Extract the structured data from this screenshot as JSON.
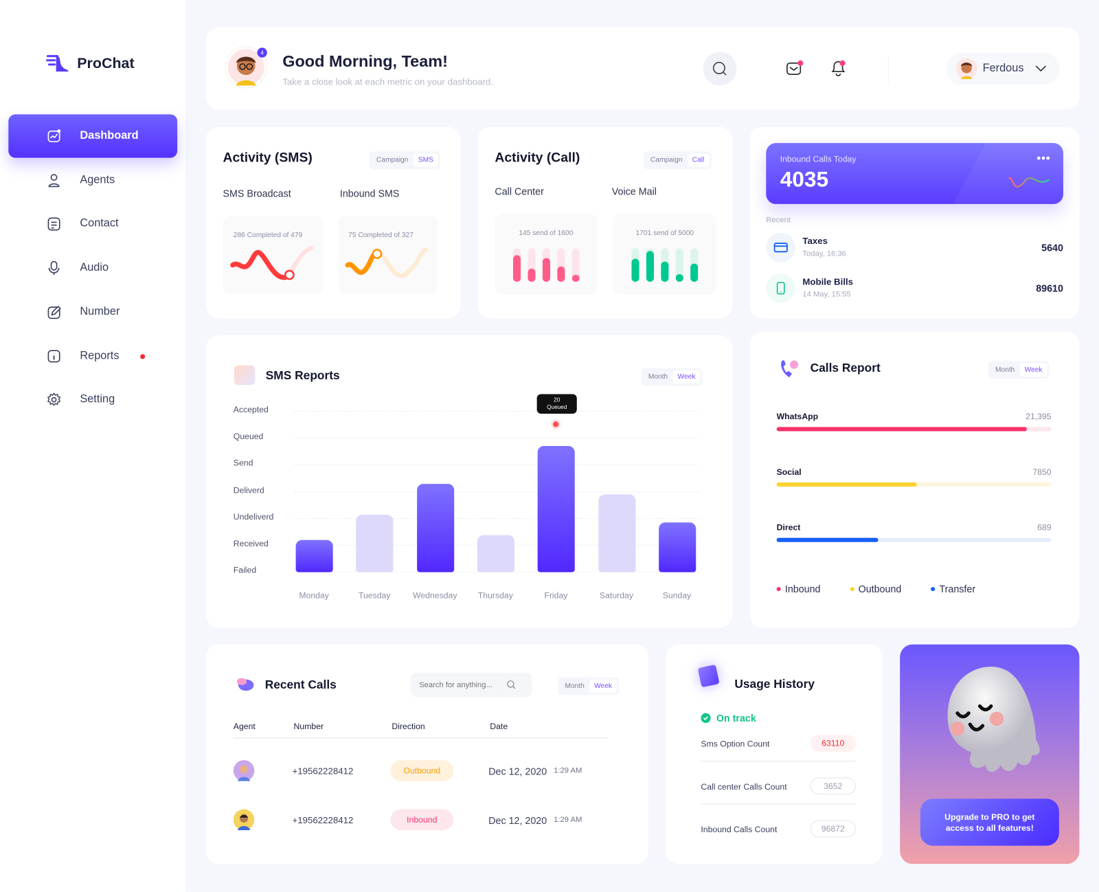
{
  "brand": {
    "name": "ProChat",
    "accent": "#5a3cff"
  },
  "sidebar": {
    "items": [
      {
        "label": "Dashboard",
        "icon": "chart-icon",
        "active": true
      },
      {
        "label": "Agents",
        "icon": "user-icon"
      },
      {
        "label": "Contact",
        "icon": "contact-icon"
      },
      {
        "label": "Audio",
        "icon": "microphone-icon"
      },
      {
        "label": "Number",
        "icon": "edit-icon"
      },
      {
        "label": "Reports",
        "icon": "info-icon",
        "badge_dot": true
      },
      {
        "label": "Setting",
        "icon": "gear-icon"
      }
    ]
  },
  "header": {
    "greeting": "Good Morning, Team!",
    "subtitle": "Take a close look at each metric on your dashboard.",
    "avatar_badge": "4",
    "user": "Ferdous"
  },
  "activity_sms": {
    "title": "Activity (SMS)",
    "tabs": [
      "Campaign",
      "SMS"
    ],
    "active_tab": "SMS",
    "items": [
      {
        "label": "SMS Broadcast",
        "caption": "286 Completed of 479",
        "color": "#ff3b3b"
      },
      {
        "label": "Inbound SMS",
        "caption": "75 Completed of  327",
        "color": "#ff9500"
      }
    ]
  },
  "activity_call": {
    "title": "Activity (Call)",
    "tabs": [
      "Campaign",
      "Call"
    ],
    "active_tab": "Call",
    "items": [
      {
        "label": "Call Center",
        "caption": "145 send of 1600",
        "color": "#ff5c8a",
        "track": "#fde4ec",
        "levels": [
          0.8,
          0.4,
          0.7,
          0.45,
          0.2
        ]
      },
      {
        "label": "Voice Mail",
        "caption": "1701 send of 5000",
        "color": "#00c98f",
        "track": "#dcf4ec",
        "levels": [
          0.68,
          0.92,
          0.6,
          0.22,
          0.55
        ]
      }
    ]
  },
  "inbound": {
    "label": "Inbound Calls Today",
    "value": "4035",
    "recent_label": "Recent",
    "recent": [
      {
        "title": "Taxes",
        "time": "Today, 16:36",
        "amount": "5640",
        "icon": "credit-card-icon"
      },
      {
        "title": "Mobile Bills",
        "time": "14 May, 15:55",
        "amount": "89610",
        "icon": "phone-icon"
      }
    ]
  },
  "sms_reports": {
    "title": "SMS Reports",
    "tabs": [
      "Month",
      "Week"
    ],
    "active_tab": "Week",
    "tooltip": {
      "value": "20",
      "label": "Queued"
    }
  },
  "chart_data": {
    "type": "bar",
    "title": "SMS Reports",
    "y_categories": [
      "Accepted",
      "Queued",
      "Send",
      "Deliverd",
      "Undeliverd",
      "Received",
      "Failed"
    ],
    "categories": [
      "Monday",
      "Tuesday",
      "Wednesday",
      "Thursday",
      "Friday",
      "Saturday",
      "Sunday"
    ],
    "values": [
      1.2,
      2.2,
      3.4,
      1.4,
      4.9,
      3.0,
      1.9
    ],
    "highlight": [
      true,
      false,
      true,
      false,
      true,
      false,
      true
    ],
    "colors": {
      "solid": "#5a3cff",
      "light": "#dcd9fb"
    }
  },
  "calls_report": {
    "title": "Calls Report",
    "tabs": [
      "Month",
      "Week"
    ],
    "active_tab": "Week",
    "rows": [
      {
        "label": "WhatsApp",
        "value": "21,395",
        "fill": 0.91,
        "color": "#f7336c",
        "track": "#fde6ec"
      },
      {
        "label": "Social",
        "value": "7850",
        "fill": 0.51,
        "color": "#fcd22f",
        "track": "#fdf6dd"
      },
      {
        "label": "Direct",
        "value": "689",
        "fill": 0.37,
        "color": "#1660f5",
        "track": "#e5edfc"
      }
    ],
    "legend": [
      {
        "label": "Inbound",
        "color": "#f7336c"
      },
      {
        "label": "Outbound",
        "color": "#fcd22f"
      },
      {
        "label": "Transfer",
        "color": "#1660f5"
      }
    ]
  },
  "recent_calls": {
    "title": "Recent Calls",
    "search_placeholder": "Search for anything...",
    "tabs": [
      "Month",
      "Week"
    ],
    "active_tab": "Week",
    "columns": [
      "Agent",
      "Number",
      "Direction",
      "Date"
    ],
    "rows": [
      {
        "number": "+19562228412",
        "direction": "Outbound",
        "date": "Dec 12, 2020",
        "time": "1:29 AM"
      },
      {
        "number": "+19562228412",
        "direction": "Inbound",
        "date": "Dec 12, 2020",
        "time": "1:29 AM"
      }
    ]
  },
  "usage": {
    "title": "Usage History",
    "status": "On track",
    "rows": [
      {
        "label": "Sms Option Count",
        "value": "63110"
      },
      {
        "label": "Call center Calls Count",
        "value": "3652"
      },
      {
        "label": "Inbound Calls Count",
        "value": "96872"
      }
    ]
  },
  "promo": {
    "cta": "Upgrade to PRO to get access to all features!"
  }
}
